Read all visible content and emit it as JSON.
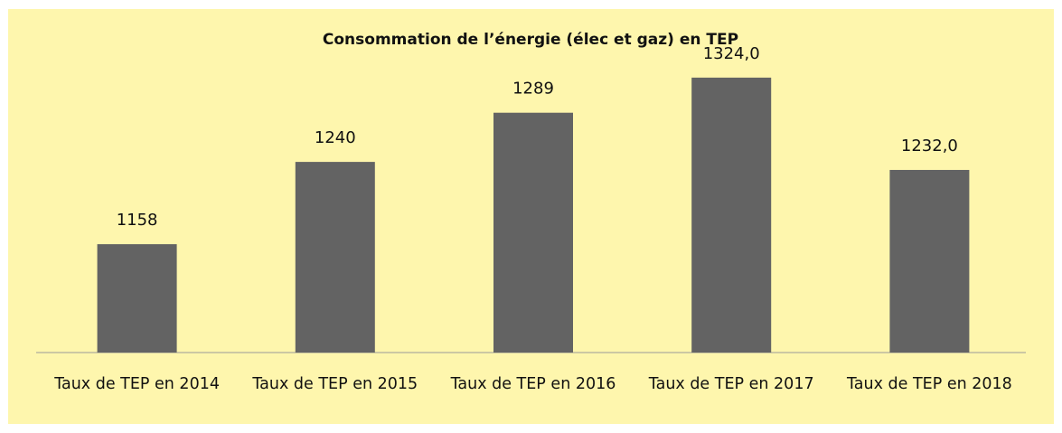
{
  "chart_data": {
    "type": "bar",
    "title": "Consommation de l’énergie (élec et gaz) en TEP",
    "categories": [
      "Taux de TEP en 2014",
      "Taux de TEP en 2015",
      "Taux de TEP en 2016",
      "Taux de TEP en 2017",
      "Taux de TEP en 2018"
    ],
    "values": [
      1158,
      1240,
      1289,
      1324,
      1232
    ],
    "value_labels": [
      "1158",
      "1240",
      "1289",
      "1324,0",
      "1232,0"
    ],
    "color": "#636363",
    "ylim": [
      1050,
      1350
    ]
  }
}
